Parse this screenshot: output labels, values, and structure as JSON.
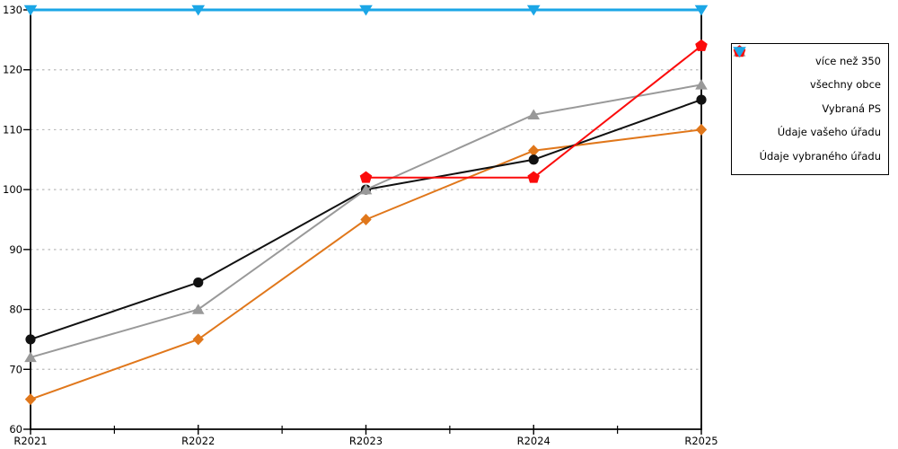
{
  "chart_data": {
    "type": "line",
    "title": "",
    "xlabel": "",
    "ylabel": "",
    "categories": [
      "R2021",
      "R2022",
      "R2023",
      "R2024",
      "R2025"
    ],
    "series": [
      {
        "name": "více než 350",
        "color": "#e0771b",
        "marker": "diamond",
        "values": [
          65,
          75,
          95,
          106.5,
          110
        ]
      },
      {
        "name": "všechny obce",
        "color": "#111111",
        "marker": "circle",
        "values": [
          75,
          84.5,
          100,
          105,
          115
        ]
      },
      {
        "name": "Vybraná PS",
        "color": "#999999",
        "marker": "triangle-up",
        "values": [
          72,
          80,
          100,
          112.5,
          117.5
        ]
      },
      {
        "name": "Údaje vašeho úřadu",
        "color": "#fb0b0b",
        "marker": "pentagon",
        "values": [
          null,
          null,
          102,
          102,
          124
        ]
      },
      {
        "name": "Údaje vybraného úřadu",
        "color": "#1ba6e6",
        "marker": "triangle-down",
        "values": [
          130,
          130,
          130,
          130,
          130
        ]
      }
    ],
    "ylim": [
      60,
      130
    ],
    "yticks": [
      60,
      70,
      80,
      90,
      100,
      110,
      120,
      130
    ],
    "ytick_labels": [
      "60",
      "70",
      "80",
      "90",
      "100",
      "110",
      "120",
      "130"
    ],
    "grid": "horizontal-dotted",
    "gridline_color": "#bbbbbb",
    "axis_color": "#000000",
    "legend_position": "right-outside"
  }
}
